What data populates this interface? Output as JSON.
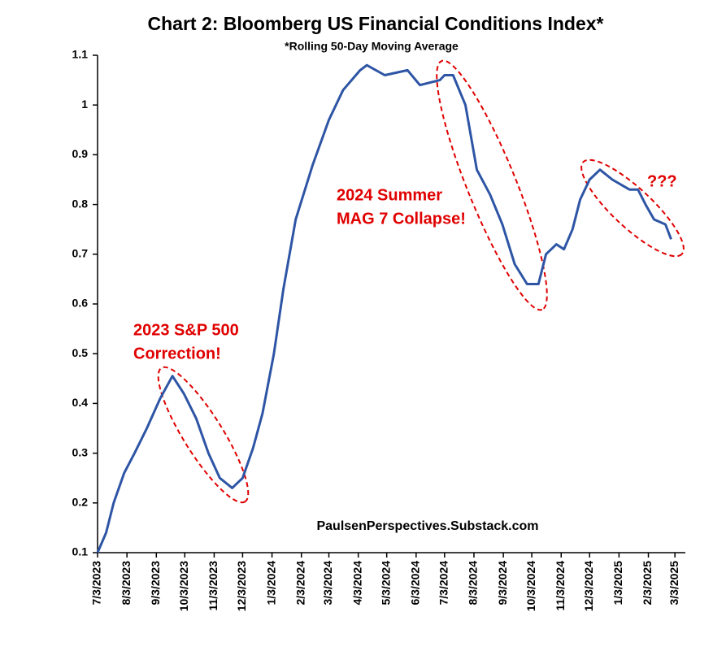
{
  "chart_data": {
    "type": "line",
    "title": "Chart 2: Bloomberg US Financial Conditions Index*",
    "subtitle": "*Rolling 50-Day Moving Average",
    "source": "PaulsenPerspectives.Substack.com",
    "annotations": [
      [
        "2023 S&P 500",
        "Correction!"
      ],
      [
        "2024 Summer",
        "MAG 7 Collapse!"
      ],
      [
        "???"
      ]
    ],
    "x": [
      "2023-07-03",
      "2023-07-12",
      "2023-07-20",
      "2023-07-31",
      "2023-08-11",
      "2023-08-24",
      "2023-09-07",
      "2023-09-20",
      "2023-10-02",
      "2023-10-15",
      "2023-10-28",
      "2023-11-09",
      "2023-11-22",
      "2023-12-03",
      "2023-12-14",
      "2023-12-24",
      "2024-01-05",
      "2024-01-15",
      "2024-01-28",
      "2024-02-15",
      "2024-03-03",
      "2024-03-18",
      "2024-04-05",
      "2024-04-12",
      "2024-05-01",
      "2024-05-25",
      "2024-06-07",
      "2024-06-28",
      "2024-07-03",
      "2024-07-12",
      "2024-07-25",
      "2024-08-06",
      "2024-08-20",
      "2024-09-02",
      "2024-09-15",
      "2024-09-28",
      "2024-10-10",
      "2024-10-18",
      "2024-10-29",
      "2024-11-06",
      "2024-11-15",
      "2024-11-23",
      "2024-12-03",
      "2024-12-14",
      "2024-12-27",
      "2025-01-14",
      "2025-01-23",
      "2025-01-31",
      "2025-02-09",
      "2025-02-21",
      "2025-02-27"
    ],
    "series": [
      {
        "name": "Bloomberg US Financial Conditions Index",
        "color": "#2e55a5",
        "values": [
          0.1,
          0.14,
          0.2,
          0.26,
          0.3,
          0.35,
          0.41,
          0.455,
          0.42,
          0.37,
          0.3,
          0.25,
          0.23,
          0.25,
          0.31,
          0.38,
          0.5,
          0.63,
          0.77,
          0.88,
          0.97,
          1.03,
          1.07,
          1.08,
          1.06,
          1.07,
          1.04,
          1.05,
          1.06,
          1.06,
          1.0,
          0.87,
          0.82,
          0.76,
          0.68,
          0.64,
          0.64,
          0.7,
          0.72,
          0.71,
          0.75,
          0.81,
          0.85,
          0.87,
          0.85,
          0.83,
          0.83,
          0.8,
          0.77,
          0.76,
          0.73
        ]
      }
    ],
    "xlim": [
      "2023-07-03",
      "2025-03-14"
    ],
    "xticks": [
      {
        "value": "2023-07-03",
        "label": "7/3/2023"
      },
      {
        "value": "2023-08-03",
        "label": "8/3/2023"
      },
      {
        "value": "2023-09-03",
        "label": "9/3/2023"
      },
      {
        "value": "2023-10-03",
        "label": "10/3/2023"
      },
      {
        "value": "2023-11-03",
        "label": "11/3/2023"
      },
      {
        "value": "2023-12-03",
        "label": "12/3/2023"
      },
      {
        "value": "2024-01-03",
        "label": "1/3/2024"
      },
      {
        "value": "2024-02-03",
        "label": "2/3/2024"
      },
      {
        "value": "2024-03-03",
        "label": "3/3/2024"
      },
      {
        "value": "2024-04-03",
        "label": "4/3/2024"
      },
      {
        "value": "2024-05-03",
        "label": "5/3/2024"
      },
      {
        "value": "2024-06-03",
        "label": "6/3/2024"
      },
      {
        "value": "2024-07-03",
        "label": "7/3/2024"
      },
      {
        "value": "2024-08-03",
        "label": "8/3/2024"
      },
      {
        "value": "2024-09-03",
        "label": "9/3/2024"
      },
      {
        "value": "2024-10-03",
        "label": "10/3/2024"
      },
      {
        "value": "2024-11-03",
        "label": "11/3/2024"
      },
      {
        "value": "2024-12-03",
        "label": "12/3/2024"
      },
      {
        "value": "2025-01-03",
        "label": "1/3/2025"
      },
      {
        "value": "2025-02-03",
        "label": "2/3/2025"
      },
      {
        "value": "2025-03-03",
        "label": "3/3/2025"
      }
    ],
    "ylim": [
      0.1,
      1.1
    ],
    "yticks": [
      0.1,
      0.2,
      0.3,
      0.4,
      0.5,
      0.6,
      0.7,
      0.8,
      0.9,
      1,
      1.1
    ]
  }
}
